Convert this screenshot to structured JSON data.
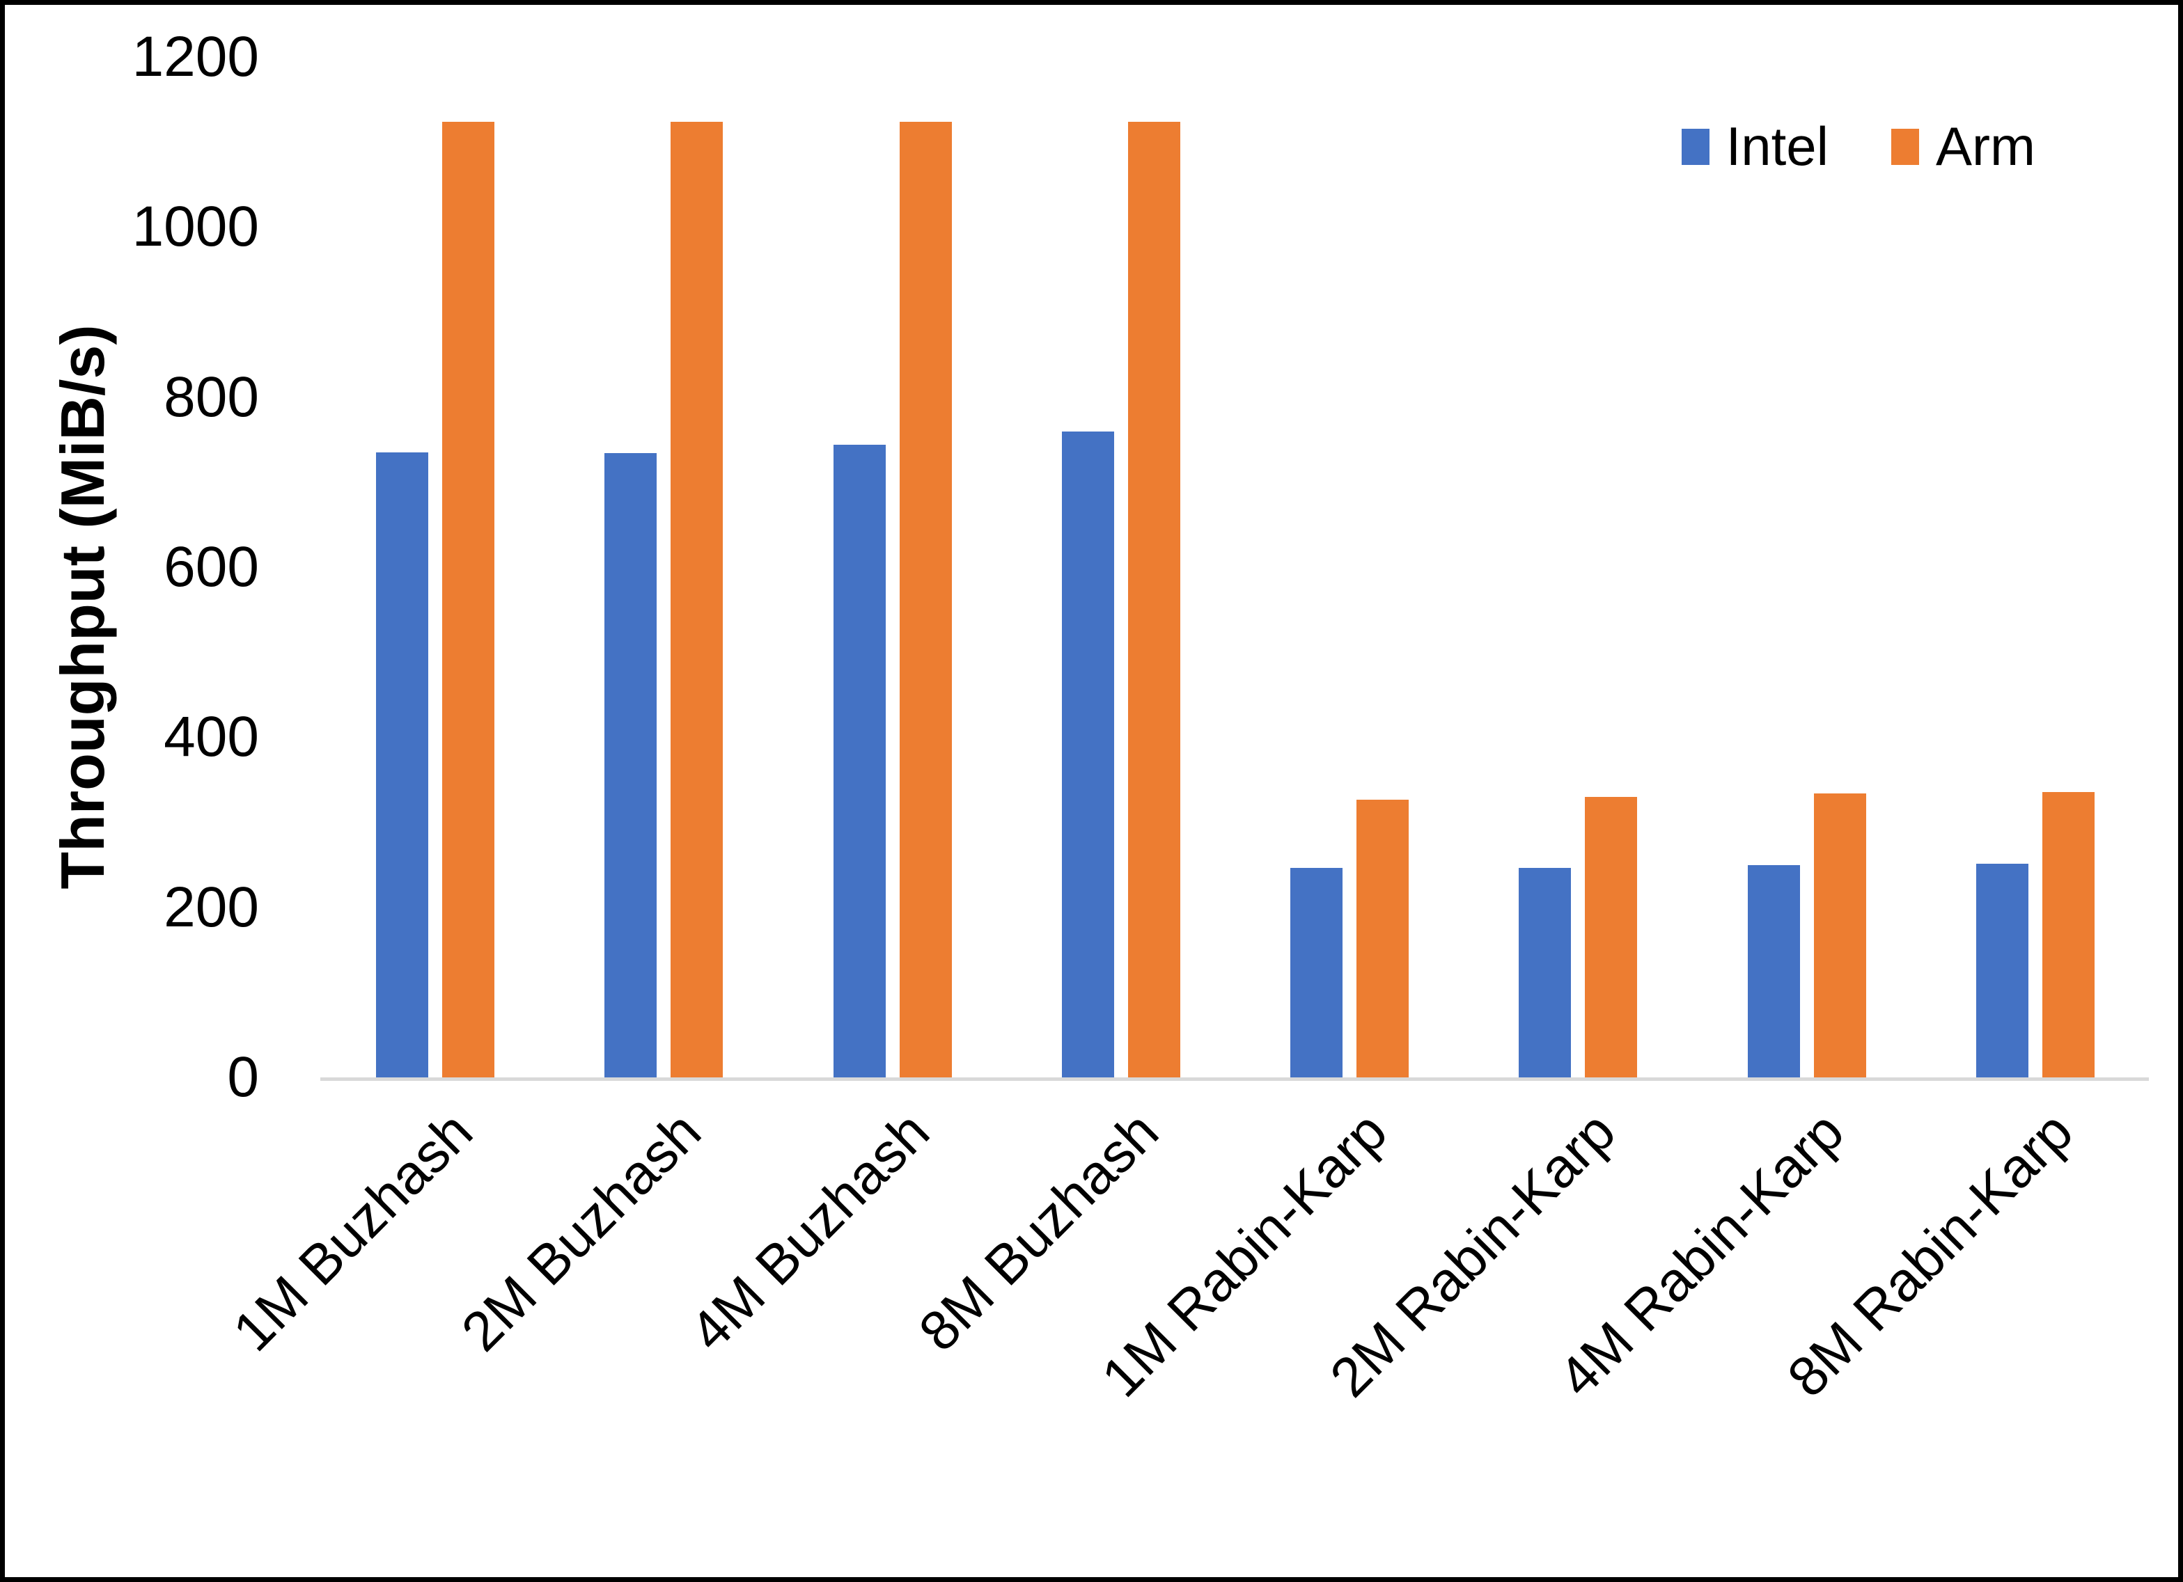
{
  "chart_data": {
    "type": "bar",
    "title": "",
    "xlabel": "",
    "ylabel": "Throughput (MiB/s)",
    "ylim": [
      0,
      1200
    ],
    "yticks": [
      0,
      200,
      400,
      600,
      800,
      1000,
      1200
    ],
    "grid": false,
    "legend_position": "top-right",
    "categories": [
      "1M Buzhash",
      "2M Buzhash",
      "4M Buzhash",
      "8M Buzhash",
      "1M Rabin-Karp",
      "2M Rabin-Karp",
      "4M Rabin-Karp",
      "8M Rabin-Karp"
    ],
    "series": [
      {
        "name": "Intel",
        "color": "#4472C4",
        "values": [
          735,
          734,
          744,
          760,
          246,
          246,
          250,
          251
        ]
      },
      {
        "name": "Arm",
        "color": "#ED7D31",
        "values": [
          1124,
          1124,
          1124,
          1124,
          327,
          330,
          334,
          336
        ]
      }
    ]
  },
  "colors": {
    "axis_line": "#D9D9D9",
    "text": "#000000",
    "background": "#FFFFFF",
    "frame_border": "#000000"
  }
}
